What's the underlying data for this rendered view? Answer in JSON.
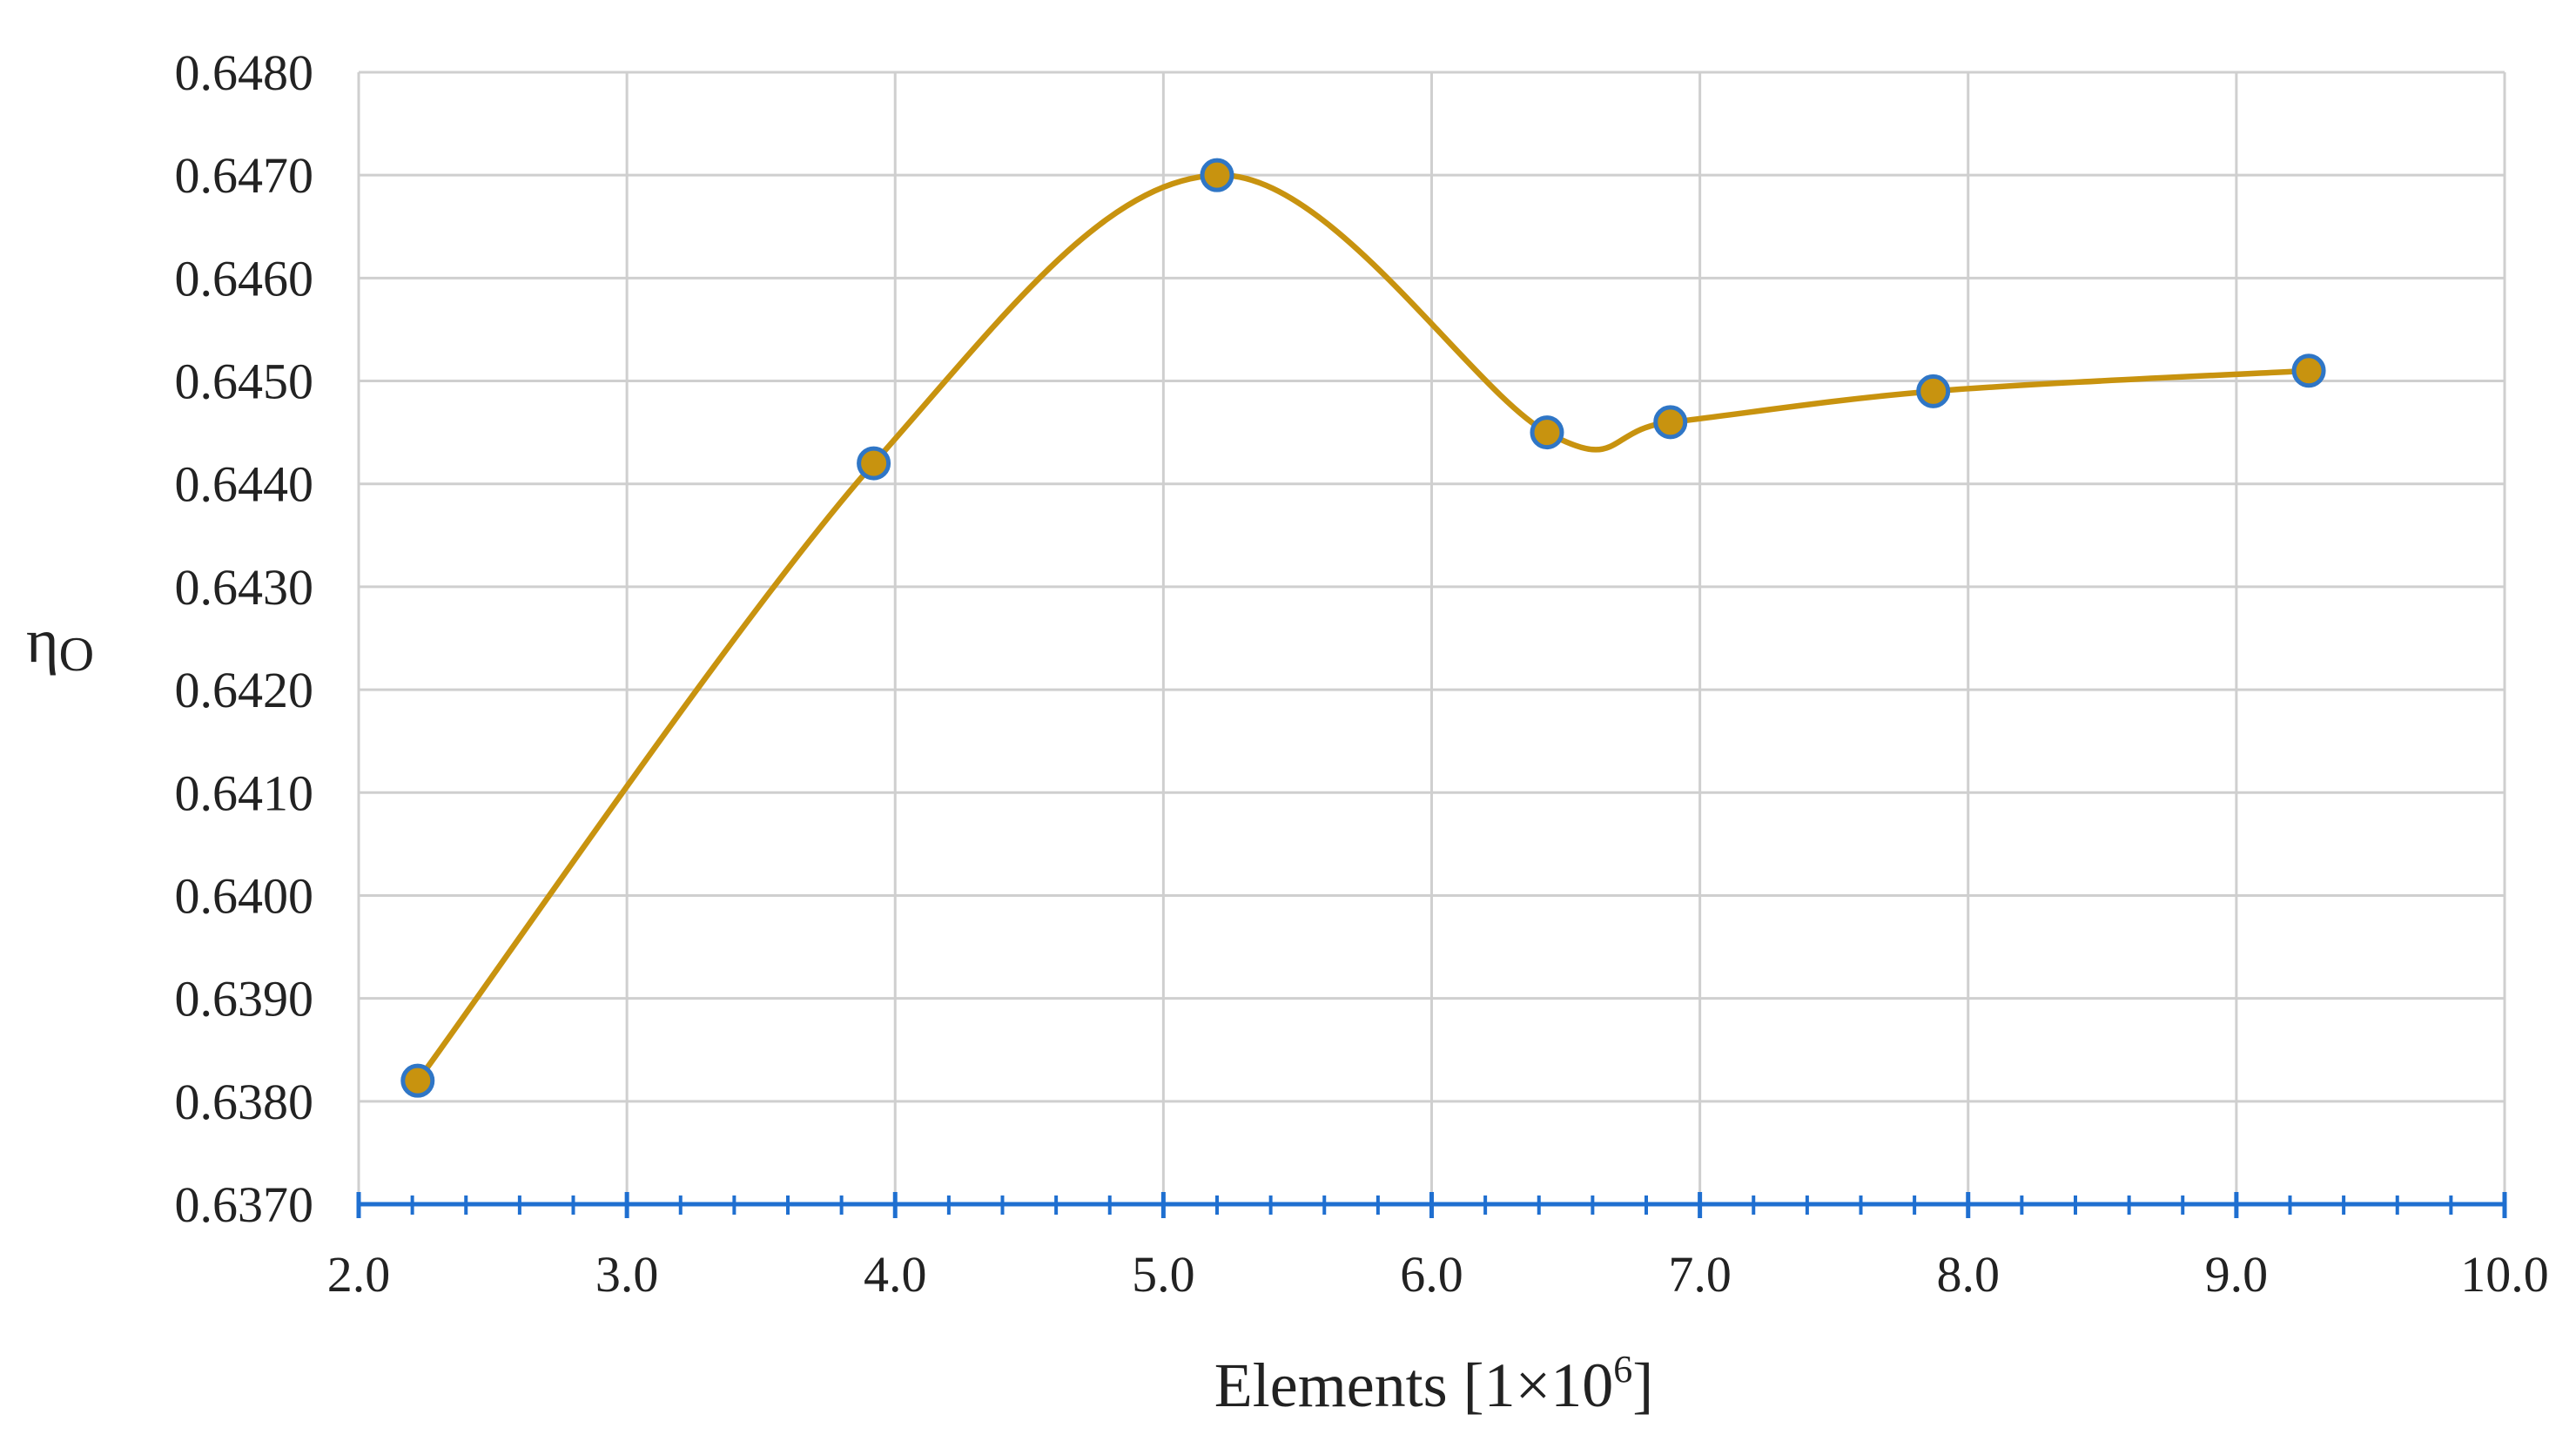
{
  "chart_data": {
    "type": "line",
    "smooth": true,
    "title": "",
    "xlabel": "Elements [1×10",
    "xlabel_sup": "6",
    "xlabel_suffix": "]",
    "ylabel_main": "η",
    "ylabel_sub": "O",
    "xlim": [
      2.0,
      10.0
    ],
    "ylim": [
      0.637,
      0.648
    ],
    "x_ticks": [
      "2.0",
      "3.0",
      "4.0",
      "5.0",
      "6.0",
      "7.0",
      "8.0",
      "9.0",
      "10.0"
    ],
    "y_ticks": [
      "0.6370",
      "0.6380",
      "0.6390",
      "0.6400",
      "0.6410",
      "0.6420",
      "0.6430",
      "0.6440",
      "0.6450",
      "0.6460",
      "0.6470",
      "0.6480"
    ],
    "grid": true,
    "legend": "none",
    "series": [
      {
        "x": [
          2.22,
          3.92,
          5.2,
          6.43,
          6.89,
          7.87,
          9.27
        ],
        "y": [
          0.6382,
          0.6442,
          0.647,
          0.6445,
          0.6446,
          0.6449,
          0.6451
        ]
      }
    ],
    "colors": {
      "line": "#C8930F",
      "marker_fill": "#C8930F",
      "marker_edge": "#2F76C6",
      "x_axis": "#1F6FD0",
      "grid": "#CFCFCF"
    }
  }
}
